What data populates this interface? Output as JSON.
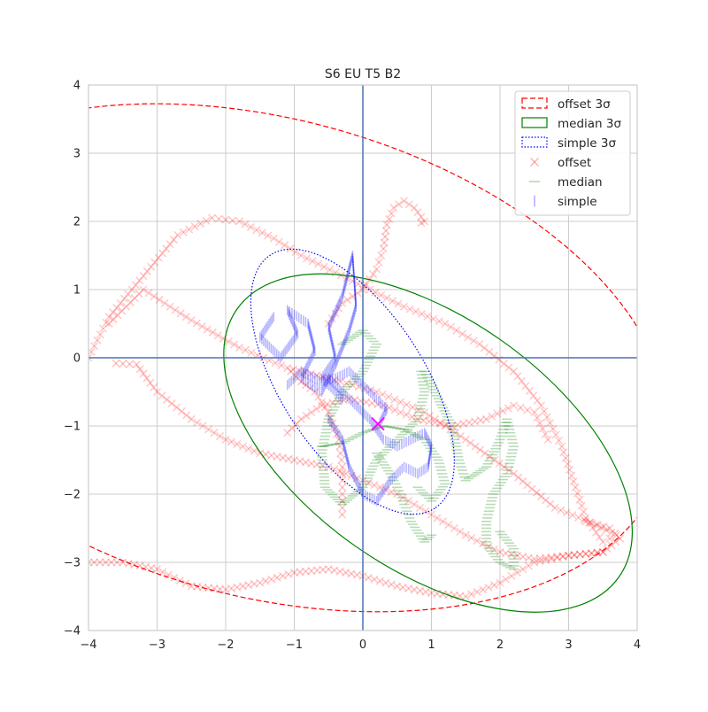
{
  "chart_data": {
    "type": "scatter",
    "title": "S6 EU T5 B2",
    "xlabel": "",
    "ylabel": "",
    "xlim": [
      -4,
      4
    ],
    "ylim": [
      -4,
      4
    ],
    "x_ticks": [
      -4,
      -3,
      -2,
      -1,
      0,
      1,
      2,
      3,
      4
    ],
    "y_ticks": [
      -4,
      -3,
      -2,
      -1,
      0,
      1,
      2,
      3,
      4
    ],
    "x_tick_labels": [
      "−4",
      "−3",
      "−2",
      "−1",
      "0",
      "1",
      "2",
      "3",
      "4"
    ],
    "y_tick_labels": [
      "−4",
      "−3",
      "−2",
      "−1",
      "0",
      "1",
      "2",
      "3",
      "4"
    ],
    "grid": true,
    "axis_lines_at_zero": true,
    "legend_position": "top-right",
    "colors": {
      "offset": "#ff0000",
      "median": "#008000",
      "simple": "#0000ff",
      "center_marker": "#ff00ff",
      "axis_zero": "#4c72b0",
      "grid": "#cccccc"
    },
    "legend": [
      {
        "label": "offset 3σ",
        "kind": "ellipse",
        "color": "#ff0000",
        "style": "dashed"
      },
      {
        "label": "median 3σ",
        "kind": "ellipse",
        "color": "#008000",
        "style": "solid"
      },
      {
        "label": "simple 3σ",
        "kind": "ellipse",
        "color": "#0000ff",
        "style": "dotted"
      },
      {
        "label": "offset",
        "kind": "marker",
        "color": "#ff0000",
        "marker": "x"
      },
      {
        "label": "median",
        "kind": "marker",
        "color": "#008000",
        "marker": "_"
      },
      {
        "label": "simple",
        "kind": "marker",
        "color": "#0000ff",
        "marker": "|"
      }
    ],
    "ellipses": [
      {
        "name": "offset 3σ",
        "cx": -1.4,
        "cy": 0.0,
        "a": 6.0,
        "b": 3.5,
        "angle_deg": -15,
        "color": "#ff0000",
        "style": "dashed"
      },
      {
        "name": "median 3σ",
        "cx": 0.95,
        "cy": -1.25,
        "a": 3.4,
        "b": 1.85,
        "angle_deg": -35,
        "color": "#008000",
        "style": "solid"
      },
      {
        "name": "simple 3σ",
        "cx": -0.15,
        "cy": -0.35,
        "a": 2.2,
        "b": 1.05,
        "angle_deg": -57,
        "color": "#0000ff",
        "style": "dotted"
      }
    ],
    "center_marker": {
      "x": 0.22,
      "y": -0.97,
      "color": "#ff00ff",
      "marker": "x"
    },
    "series": [
      {
        "name": "offset",
        "color": "#ff0000",
        "marker": "x",
        "paths": [
          [
            [
              -4.0,
              0.0
            ],
            [
              -3.7,
              0.6
            ],
            [
              -3.2,
              1.2
            ],
            [
              -2.7,
              1.8
            ],
            [
              -2.2,
              2.05
            ],
            [
              -1.8,
              2.0
            ],
            [
              -1.3,
              1.75
            ],
            [
              -0.9,
              1.5
            ],
            [
              -0.4,
              1.25
            ],
            [
              0.1,
              1.0
            ],
            [
              0.6,
              0.75
            ],
            [
              1.2,
              0.5
            ],
            [
              1.7,
              0.2
            ],
            [
              2.2,
              -0.2
            ],
            [
              2.6,
              -0.7
            ],
            [
              2.9,
              -1.3
            ],
            [
              3.1,
              -1.9
            ],
            [
              3.25,
              -2.35
            ],
            [
              3.5,
              -2.7
            ],
            [
              3.7,
              -2.6
            ],
            [
              3.4,
              -2.45
            ],
            [
              2.8,
              -2.2
            ],
            [
              2.2,
              -1.7
            ],
            [
              1.5,
              -1.2
            ],
            [
              0.9,
              -0.8
            ],
            [
              0.2,
              -0.5
            ],
            [
              -0.5,
              -0.3
            ],
            [
              -1.1,
              -0.15
            ],
            [
              -1.8,
              0.15
            ],
            [
              -2.5,
              0.55
            ],
            [
              -3.2,
              1.0
            ],
            [
              -3.7,
              0.5
            ]
          ],
          [
            [
              -3.6,
              -0.08
            ],
            [
              -3.3,
              -0.1
            ],
            [
              -3.0,
              -0.5
            ],
            [
              -2.5,
              -0.9
            ],
            [
              -2.0,
              -1.2
            ],
            [
              -1.5,
              -1.4
            ],
            [
              -1.0,
              -1.5
            ],
            [
              -0.5,
              -1.6
            ],
            [
              0.0,
              -1.8
            ],
            [
              0.5,
              -2.0
            ],
            [
              1.0,
              -2.3
            ],
            [
              1.5,
              -2.6
            ],
            [
              2.0,
              -2.85
            ],
            [
              2.5,
              -2.95
            ],
            [
              3.0,
              -2.9
            ],
            [
              3.5,
              -2.85
            ],
            [
              3.75,
              -2.65
            ],
            [
              3.6,
              -2.5
            ],
            [
              3.25,
              -2.4
            ]
          ],
          [
            [
              -4.0,
              -3.0
            ],
            [
              -3.5,
              -3.0
            ],
            [
              -3.0,
              -3.1
            ],
            [
              -2.5,
              -3.35
            ],
            [
              -2.0,
              -3.4
            ],
            [
              -1.5,
              -3.3
            ],
            [
              -1.0,
              -3.15
            ],
            [
              -0.5,
              -3.1
            ],
            [
              0.0,
              -3.2
            ],
            [
              0.5,
              -3.35
            ],
            [
              1.0,
              -3.45
            ],
            [
              1.5,
              -3.5
            ],
            [
              2.0,
              -3.3
            ],
            [
              2.5,
              -3.0
            ],
            [
              3.0,
              -2.9
            ],
            [
              3.5,
              -2.85
            ]
          ],
          [
            [
              -0.5,
              0.5
            ],
            [
              -0.3,
              0.8
            ],
            [
              0.0,
              1.0
            ],
            [
              0.2,
              1.3
            ],
            [
              0.3,
              1.6
            ],
            [
              0.35,
              1.95
            ],
            [
              0.45,
              2.2
            ],
            [
              0.6,
              2.3
            ],
            [
              0.75,
              2.2
            ],
            [
              0.9,
              2.0
            ],
            [
              0.85,
              1.98
            ]
          ],
          [
            [
              -1.05,
              -0.2
            ],
            [
              -0.9,
              -0.35
            ],
            [
              -0.7,
              -0.5
            ],
            [
              -0.5,
              -0.8
            ],
            [
              -0.35,
              -1.2
            ],
            [
              -0.3,
              -1.6
            ],
            [
              -0.3,
              -2.0
            ],
            [
              -0.3,
              -2.3
            ]
          ],
          [
            [
              -1.1,
              -1.1
            ],
            [
              -0.9,
              -0.9
            ],
            [
              -0.6,
              -0.7
            ],
            [
              -0.2,
              -0.6
            ],
            [
              0.3,
              -0.7
            ],
            [
              0.8,
              -0.9
            ],
            [
              1.3,
              -1.0
            ],
            [
              1.8,
              -0.9
            ],
            [
              2.2,
              -0.7
            ],
            [
              2.5,
              -0.8
            ],
            [
              2.7,
              -1.2
            ]
          ]
        ]
      },
      {
        "name": "median",
        "color": "#008000",
        "marker": "_",
        "paths": [
          [
            [
              -0.3,
              0.2
            ],
            [
              0.0,
              0.4
            ],
            [
              0.2,
              0.2
            ],
            [
              0.0,
              -0.2
            ],
            [
              -0.3,
              -0.5
            ],
            [
              -0.5,
              -0.9
            ],
            [
              -0.6,
              -1.4
            ],
            [
              -0.55,
              -1.9
            ],
            [
              -0.3,
              -2.15
            ],
            [
              0.0,
              -1.9
            ],
            [
              0.2,
              -1.5
            ],
            [
              0.5,
              -1.2
            ],
            [
              0.8,
              -0.9
            ],
            [
              0.9,
              -0.5
            ],
            [
              0.85,
              -0.2
            ]
          ],
          [
            [
              0.9,
              -0.2
            ],
            [
              1.1,
              -0.6
            ],
            [
              1.3,
              -1.0
            ],
            [
              1.4,
              -1.5
            ],
            [
              1.5,
              -1.8
            ],
            [
              1.8,
              -1.6
            ],
            [
              2.0,
              -1.2
            ],
            [
              2.1,
              -0.9
            ],
            [
              2.2,
              -1.3
            ],
            [
              2.1,
              -1.7
            ],
            [
              1.9,
              -2.0
            ],
            [
              1.8,
              -2.4
            ],
            [
              1.8,
              -2.75
            ],
            [
              2.0,
              -3.0
            ],
            [
              2.2,
              -3.1
            ],
            [
              2.2,
              -2.8
            ],
            [
              2.0,
              -2.55
            ]
          ],
          [
            [
              -0.6,
              -1.3
            ],
            [
              -0.3,
              -1.25
            ],
            [
              0.0,
              -1.1
            ],
            [
              0.3,
              -1.0
            ],
            [
              0.6,
              -1.05
            ],
            [
              0.9,
              -1.2
            ],
            [
              1.1,
              -1.5
            ],
            [
              1.2,
              -1.85
            ],
            [
              1.0,
              -2.1
            ],
            [
              0.8,
              -1.9
            ]
          ],
          [
            [
              0.2,
              -1.4
            ],
            [
              0.4,
              -1.7
            ],
            [
              0.55,
              -2.0
            ],
            [
              0.7,
              -2.4
            ],
            [
              0.9,
              -2.7
            ],
            [
              1.0,
              -2.6
            ]
          ]
        ]
      },
      {
        "name": "simple",
        "color": "#0000ff",
        "marker": "|",
        "paths": [
          [
            [
              -1.3,
              0.6
            ],
            [
              -1.5,
              0.3
            ],
            [
              -1.2,
              0.0
            ],
            [
              -0.95,
              0.35
            ],
            [
              -1.1,
              0.7
            ],
            [
              -0.8,
              0.5
            ],
            [
              -0.7,
              0.1
            ],
            [
              -0.9,
              -0.3
            ],
            [
              -0.6,
              -0.5
            ],
            [
              -0.4,
              -0.1
            ],
            [
              -0.2,
              0.4
            ],
            [
              -0.1,
              0.75
            ],
            [
              -0.15,
              1.5
            ],
            [
              -0.3,
              0.9
            ],
            [
              -0.5,
              0.45
            ],
            [
              -0.4,
              0.0
            ],
            [
              -0.6,
              -0.3
            ],
            [
              -0.3,
              -0.6
            ]
          ],
          [
            [
              -0.5,
              -0.3
            ],
            [
              -0.2,
              -0.6
            ],
            [
              0.1,
              -0.9
            ],
            [
              0.3,
              -1.2
            ],
            [
              0.5,
              -1.3
            ],
            [
              0.7,
              -1.2
            ],
            [
              0.9,
              -1.1
            ],
            [
              1.0,
              -1.3
            ],
            [
              0.95,
              -1.6
            ],
            [
              0.8,
              -1.7
            ],
            [
              0.6,
              -1.6
            ],
            [
              0.4,
              -1.8
            ],
            [
              0.2,
              -2.1
            ],
            [
              0.0,
              -2.0
            ],
            [
              -0.2,
              -1.6
            ],
            [
              -0.3,
              -1.2
            ],
            [
              -0.5,
              -0.9
            ]
          ],
          [
            [
              -1.1,
              -0.4
            ],
            [
              -0.9,
              -0.2
            ],
            [
              -0.6,
              -0.35
            ],
            [
              -0.4,
              -0.3
            ],
            [
              -0.2,
              -0.2
            ],
            [
              0.0,
              -0.4
            ],
            [
              0.2,
              -0.6
            ],
            [
              0.35,
              -0.75
            ],
            [
              0.25,
              -0.95
            ]
          ]
        ]
      }
    ]
  }
}
